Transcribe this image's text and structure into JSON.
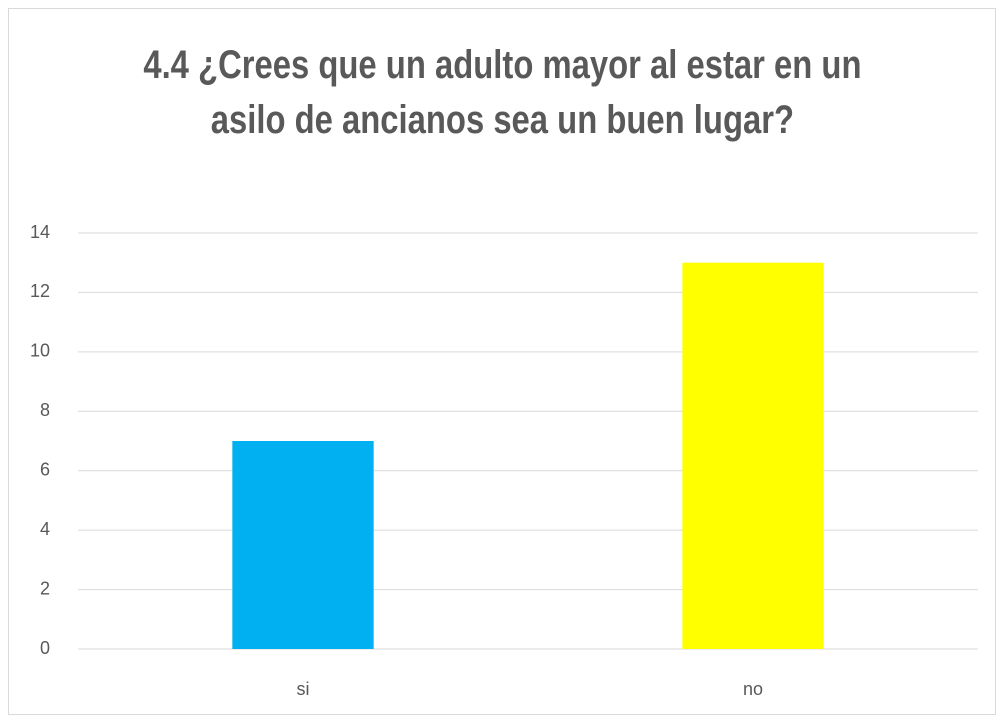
{
  "chart_data": {
    "type": "bar",
    "title": "4.4 ¿Crees que un adulto mayor al estar en un asilo de ancianos sea un buen lugar?",
    "categories": [
      "si",
      "no"
    ],
    "values": [
      7,
      13
    ],
    "colors": [
      "#00b0f0",
      "#ffff00"
    ],
    "ylim": [
      0,
      14
    ],
    "yticks": [
      0,
      2,
      4,
      6,
      8,
      10,
      12,
      14
    ],
    "grid": true
  }
}
